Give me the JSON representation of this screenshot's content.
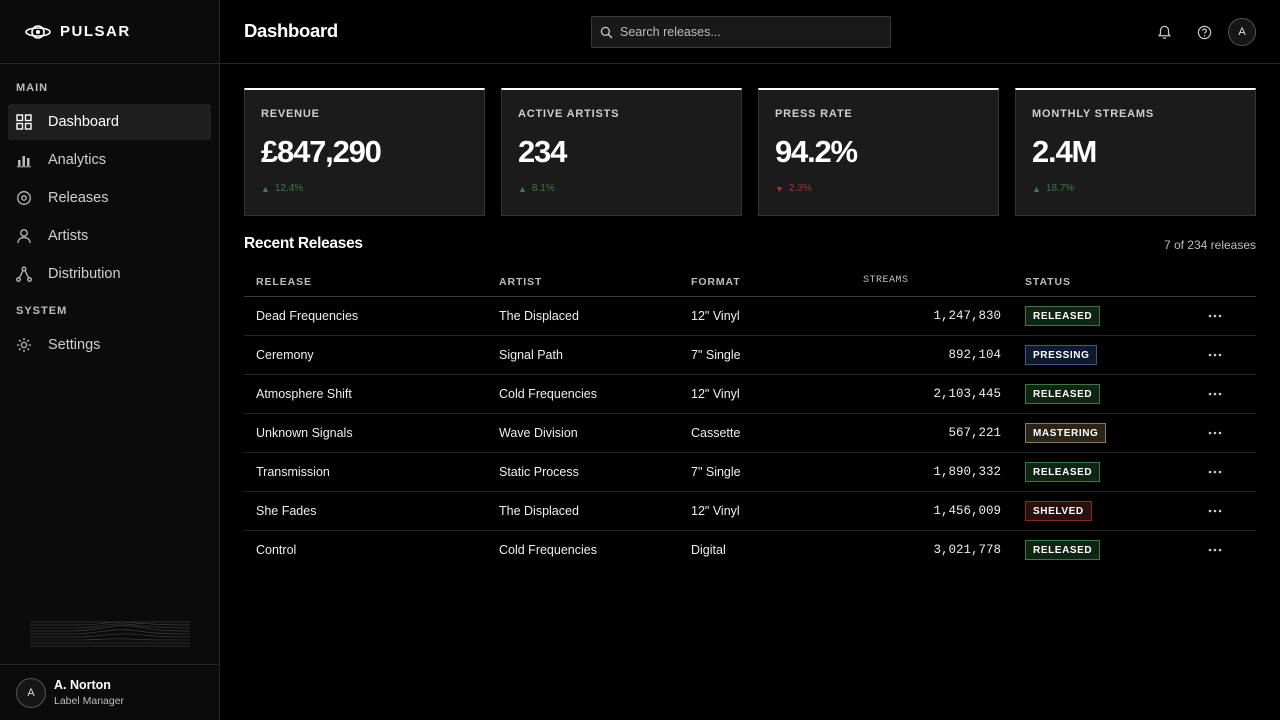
{
  "brand": {
    "name": "PULSAR"
  },
  "sidebar": {
    "sections": {
      "main": "MAIN",
      "system": "SYSTEM"
    },
    "items": [
      {
        "label": "Dashboard",
        "icon": "grid-icon",
        "active": true
      },
      {
        "label": "Analytics",
        "icon": "bar-chart-icon"
      },
      {
        "label": "Releases",
        "icon": "disc-icon"
      },
      {
        "label": "Artists",
        "icon": "user-icon"
      },
      {
        "label": "Distribution",
        "icon": "network-icon"
      },
      {
        "label": "Settings",
        "icon": "gear-icon"
      }
    ],
    "user": {
      "initial": "A",
      "name": "A. Norton",
      "role": "Label Manager"
    }
  },
  "header": {
    "title": "Dashboard",
    "search_placeholder": "Search releases...",
    "avatar_initial": "A"
  },
  "stats": [
    {
      "label": "REVENUE",
      "value": "£847,290",
      "delta": "12.4%",
      "direction": "up"
    },
    {
      "label": "ACTIVE ARTISTS",
      "value": "234",
      "delta": "8.1%",
      "direction": "up"
    },
    {
      "label": "PRESS RATE",
      "value": "94.2%",
      "delta": "2.3%",
      "direction": "down"
    },
    {
      "label": "MONTHLY STREAMS",
      "value": "2.4M",
      "delta": "18.7%",
      "direction": "up"
    }
  ],
  "recent": {
    "title": "Recent Releases",
    "count": "7 of 234 releases",
    "columns": [
      "RELEASE",
      "ARTIST",
      "FORMAT",
      "STREAMS",
      "STATUS"
    ],
    "rows": [
      {
        "release": "Dead Frequencies",
        "artist": "The Displaced",
        "format": "12\" Vinyl",
        "streams": "1,247,830",
        "status": "RELEASED"
      },
      {
        "release": "Ceremony",
        "artist": "Signal Path",
        "format": "7\" Single",
        "streams": "892,104",
        "status": "PRESSING"
      },
      {
        "release": "Atmosphere Shift",
        "artist": "Cold Frequencies",
        "format": "12\" Vinyl",
        "streams": "2,103,445",
        "status": "RELEASED"
      },
      {
        "release": "Unknown Signals",
        "artist": "Wave Division",
        "format": "Cassette",
        "streams": "567,221",
        "status": "MASTERING"
      },
      {
        "release": "Transmission",
        "artist": "Static Process",
        "format": "7\" Single",
        "streams": "1,890,332",
        "status": "RELEASED"
      },
      {
        "release": "She Fades",
        "artist": "The Displaced",
        "format": "12\" Vinyl",
        "streams": "1,456,009",
        "status": "SHELVED"
      },
      {
        "release": "Control",
        "artist": "Cold Frequencies",
        "format": "Digital",
        "streams": "3,021,778",
        "status": "RELEASED"
      }
    ]
  },
  "colors": {
    "background": "#000000",
    "sidebar": "#0b0b0b",
    "card": "#1b1b1b",
    "up": "#3a7a44",
    "down": "#a33232",
    "released": "#3a7a44",
    "pressing": "#3a5a86",
    "mastering": "#8a7a5a",
    "shelved": "#8a2a2a"
  }
}
